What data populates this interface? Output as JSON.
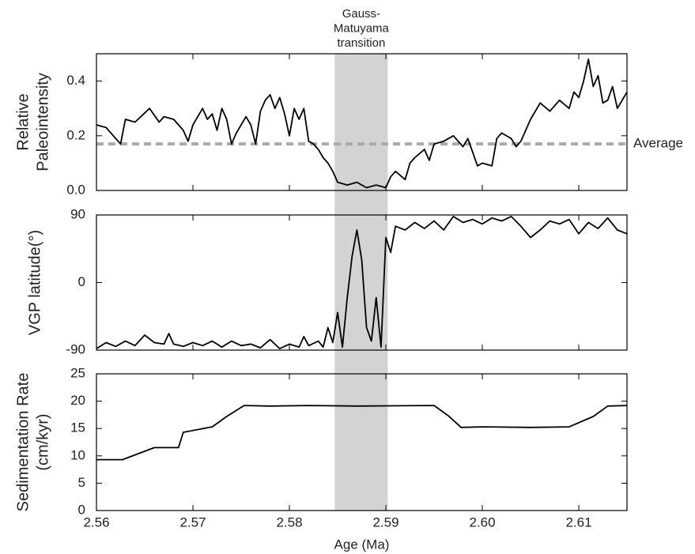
{
  "chart_data": [
    {
      "type": "line",
      "ylabel": [
        "Relative",
        "Paleointensity"
      ],
      "color": "#000000",
      "xlim": [
        2.56,
        2.615
      ],
      "xticks": [
        2.56,
        2.57,
        2.58,
        2.59,
        2.6,
        2.61
      ],
      "ylim": [
        0,
        0.5
      ],
      "yticks": [
        {
          "value": 0,
          "label": "0.0"
        },
        0.2,
        0.4
      ],
      "shade": {
        "range": [
          2.5847,
          2.5902
        ],
        "color": "#d3d3d3",
        "label": [
          "Gauss-",
          "Matuyama",
          "transition"
        ]
      },
      "reference_line": {
        "value": 0.17,
        "label": "Average",
        "color": "#aaaaaa"
      },
      "x": [
        2.56,
        2.561,
        2.562,
        2.5625,
        2.563,
        2.564,
        2.5655,
        2.5665,
        2.567,
        2.568,
        2.569,
        2.5695,
        2.57,
        2.571,
        2.5715,
        2.572,
        2.5725,
        2.573,
        2.5735,
        2.574,
        2.5745,
        2.5755,
        2.576,
        2.5765,
        2.577,
        2.5775,
        2.578,
        2.5785,
        2.579,
        2.5795,
        2.58,
        2.5805,
        2.581,
        2.5815,
        2.582,
        2.5825,
        2.583,
        2.5835,
        2.584,
        2.5845,
        2.585,
        2.586,
        2.587,
        2.588,
        2.589,
        2.59,
        2.5905,
        2.591,
        2.592,
        2.5925,
        2.593,
        2.594,
        2.5945,
        2.595,
        2.596,
        2.597,
        2.598,
        2.5985,
        2.599,
        2.5995,
        2.6,
        2.601,
        2.6015,
        2.602,
        2.603,
        2.6035,
        2.604,
        2.605,
        2.606,
        2.607,
        2.608,
        2.609,
        2.6095,
        2.61,
        2.6105,
        2.611,
        2.6115,
        2.612,
        2.6125,
        2.613,
        2.6135,
        2.614,
        2.615
      ],
      "values": [
        0.24,
        0.23,
        0.19,
        0.17,
        0.26,
        0.25,
        0.3,
        0.25,
        0.27,
        0.26,
        0.22,
        0.18,
        0.24,
        0.3,
        0.26,
        0.28,
        0.22,
        0.3,
        0.26,
        0.17,
        0.21,
        0.27,
        0.24,
        0.17,
        0.29,
        0.33,
        0.35,
        0.3,
        0.34,
        0.28,
        0.2,
        0.3,
        0.26,
        0.3,
        0.18,
        0.17,
        0.15,
        0.12,
        0.1,
        0.07,
        0.03,
        0.02,
        0.03,
        0.01,
        0.02,
        0.01,
        0.05,
        0.07,
        0.04,
        0.1,
        0.12,
        0.15,
        0.11,
        0.17,
        0.18,
        0.2,
        0.16,
        0.19,
        0.14,
        0.09,
        0.1,
        0.09,
        0.19,
        0.21,
        0.19,
        0.16,
        0.18,
        0.26,
        0.32,
        0.29,
        0.33,
        0.3,
        0.36,
        0.34,
        0.4,
        0.48,
        0.38,
        0.42,
        0.32,
        0.33,
        0.38,
        0.3,
        0.36
      ]
    },
    {
      "type": "line",
      "ylabel": [
        "VGP latitude(°)"
      ],
      "color": "#000000",
      "xlim": [
        2.56,
        2.615
      ],
      "xticks": [
        2.56,
        2.57,
        2.58,
        2.59,
        2.6,
        2.61
      ],
      "ylim": [
        -90,
        90
      ],
      "yticks": [
        -90,
        0,
        90
      ],
      "x": [
        2.56,
        2.561,
        2.562,
        2.563,
        2.564,
        2.565,
        2.566,
        2.567,
        2.5675,
        2.568,
        2.569,
        2.57,
        2.571,
        2.572,
        2.573,
        2.574,
        2.575,
        2.576,
        2.577,
        2.578,
        2.579,
        2.58,
        2.581,
        2.5815,
        2.582,
        2.583,
        2.5835,
        2.584,
        2.5845,
        2.585,
        2.5855,
        2.586,
        2.5865,
        2.587,
        2.5875,
        2.588,
        2.5885,
        2.589,
        2.5895,
        2.59,
        2.5905,
        2.591,
        2.592,
        2.593,
        2.594,
        2.595,
        2.596,
        2.597,
        2.598,
        2.599,
        2.6,
        2.601,
        2.602,
        2.603,
        2.604,
        2.605,
        2.606,
        2.607,
        2.608,
        2.609,
        2.61,
        2.611,
        2.612,
        2.613,
        2.614,
        2.615
      ],
      "values": [
        -88,
        -80,
        -85,
        -78,
        -84,
        -70,
        -80,
        -82,
        -68,
        -82,
        -85,
        -80,
        -84,
        -78,
        -86,
        -78,
        -84,
        -82,
        -87,
        -76,
        -88,
        -82,
        -86,
        -72,
        -84,
        -78,
        -86,
        -60,
        -80,
        -40,
        -86,
        -20,
        35,
        70,
        30,
        -60,
        -78,
        -20,
        -86,
        60,
        40,
        75,
        70,
        80,
        72,
        82,
        70,
        88,
        80,
        84,
        78,
        86,
        82,
        88,
        75,
        60,
        70,
        82,
        78,
        84,
        65,
        80,
        72,
        86,
        70,
        65
      ]
    },
    {
      "type": "line",
      "ylabel": [
        "Sedimentation Rate",
        "(cm/kyr)"
      ],
      "xlabel": "Age (Ma)",
      "color": "#000000",
      "xlim": [
        2.56,
        2.615
      ],
      "xticks": [
        2.56,
        2.57,
        2.58,
        2.59,
        {
          "value": 2.6,
          "label": "2.60"
        },
        2.61
      ],
      "ylim": [
        0,
        25
      ],
      "yticks": [
        0,
        5,
        10,
        15,
        20,
        25
      ],
      "x": [
        2.56,
        2.5627,
        2.566,
        2.5685,
        2.569,
        2.572,
        2.5735,
        2.5753,
        2.578,
        2.582,
        2.587,
        2.595,
        2.5965,
        2.5978,
        2.6,
        2.605,
        2.609,
        2.6115,
        2.613,
        2.615
      ],
      "values": [
        9.3,
        9.3,
        11.5,
        11.5,
        14.3,
        15.3,
        17.2,
        19.2,
        19.1,
        19.2,
        19.1,
        19.2,
        17.3,
        15.2,
        15.3,
        15.2,
        15.3,
        17.2,
        19.1,
        19.2
      ]
    }
  ]
}
